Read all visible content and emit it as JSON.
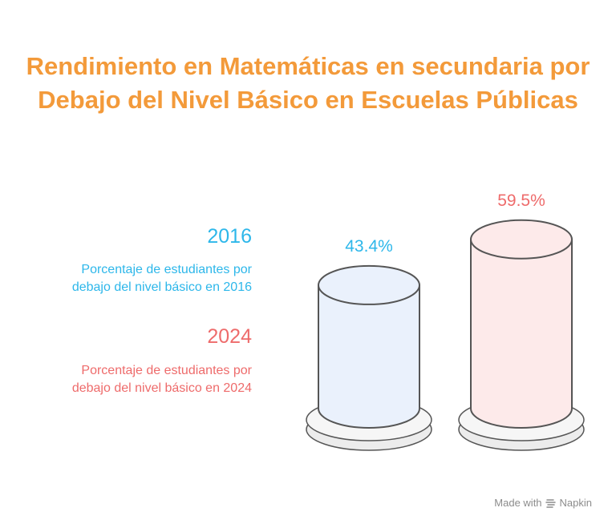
{
  "chart_data": {
    "type": "bar",
    "title": "Rendimiento en Matemáticas en secundaria por Debajo del Nivel Básico en Escuelas Públicas",
    "title_lines": [
      "Rendimiento en Matemáticas en secundaria por",
      "Debajo del Nivel Básico en Escuelas Públicas"
    ],
    "categories": [
      "2016",
      "2024"
    ],
    "values": [
      43.4,
      59.5
    ],
    "value_labels": [
      "43.4%",
      "59.5%"
    ],
    "unit": "%",
    "ylim": [
      0,
      100
    ],
    "legend": [
      {
        "label": "2016",
        "description_lines": [
          "Porcentaje de estudiantes por",
          "debajo del nivel básico en 2016"
        ],
        "color": "#2db7ea",
        "fill": "#eaf1fc"
      },
      {
        "label": "2024",
        "description_lines": [
          "Porcentaje de estudiantes por",
          "debajo del nivel básico en 2024"
        ],
        "color": "#ee6b6b",
        "fill": "#fdeaea"
      }
    ]
  },
  "footer": {
    "made_with": "Made with",
    "brand": "Napkin"
  },
  "colors": {
    "title": "#f39a3a",
    "bar_outline": "#555555",
    "base_fill": "#ececec",
    "footer_text": "#8c8c8c"
  }
}
